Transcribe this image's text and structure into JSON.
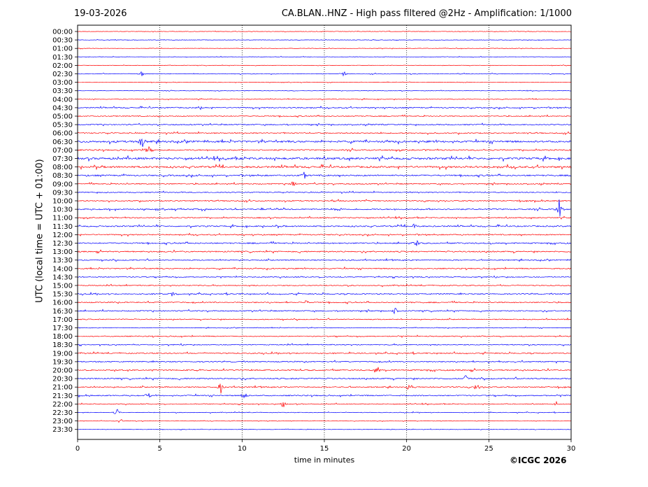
{
  "header": {
    "date": "19-03-2026",
    "title": "CA.BLAN..HNZ - High pass filtered @2Hz - Amplification: 1/1000"
  },
  "copyright": "©ICGC 2026",
  "chart_data": {
    "type": "line",
    "title": "CA.BLAN..HNZ - High pass filtered @2Hz - Amplification: 1/1000",
    "xlabel": "time in minutes",
    "ylabel": "UTC (local time = UTC + 01:00)",
    "xlim": [
      0,
      30
    ],
    "x_ticks": [
      0,
      5,
      10,
      15,
      20,
      25,
      30
    ],
    "y_ticks": [
      "00:00",
      "00:30",
      "01:00",
      "01:30",
      "02:00",
      "02:30",
      "03:00",
      "03:30",
      "04:00",
      "04:30",
      "05:00",
      "05:30",
      "06:00",
      "06:30",
      "07:00",
      "07:30",
      "08:00",
      "08:30",
      "09:00",
      "09:30",
      "10:00",
      "10:30",
      "11:00",
      "11:30",
      "12:00",
      "12:30",
      "13:00",
      "13:30",
      "14:00",
      "14:30",
      "15:00",
      "15:30",
      "16:00",
      "16:30",
      "17:00",
      "17:30",
      "18:00",
      "18:30",
      "19:00",
      "19:30",
      "20:00",
      "20:30",
      "21:00",
      "21:30",
      "22:00",
      "22:30",
      "23:00",
      "23:30"
    ],
    "grid": "vertical dotted at 5-minute intervals",
    "trace_colors": [
      "#ff0000",
      "#0000ff"
    ],
    "noise_level": [
      0.3,
      0.3,
      0.3,
      0.3,
      0.3,
      0.4,
      0.3,
      0.3,
      0.4,
      0.7,
      0.6,
      0.7,
      0.7,
      1.2,
      0.8,
      1.3,
      1.2,
      0.9,
      0.7,
      0.6,
      0.7,
      0.8,
      0.7,
      0.8,
      0.7,
      0.8,
      0.8,
      0.7,
      0.7,
      0.6,
      0.6,
      0.7,
      0.7,
      0.7,
      0.6,
      0.4,
      0.6,
      0.6,
      0.7,
      0.7,
      0.8,
      0.8,
      0.7,
      0.7,
      0.5,
      0.4,
      0.3,
      0.3
    ],
    "events": [
      {
        "line": "02:30",
        "minute": 3.9,
        "amplitude": 4
      },
      {
        "line": "02:30",
        "minute": 16.2,
        "amplitude": 4
      },
      {
        "line": "04:30",
        "minute": 7.5,
        "amplitude": 4
      },
      {
        "line": "06:30",
        "minute": 3.9,
        "amplitude": 14
      },
      {
        "line": "07:00",
        "minute": 4.3,
        "amplitude": 7
      },
      {
        "line": "08:30",
        "minute": 13.8,
        "amplitude": 7
      },
      {
        "line": "09:00",
        "minute": 13.1,
        "amplitude": 5
      },
      {
        "line": "10:30",
        "minute": 29.3,
        "amplitude": 16
      },
      {
        "line": "11:30",
        "minute": 20.5,
        "amplitude": 5
      },
      {
        "line": "12:30",
        "minute": 20.6,
        "amplitude": 7
      },
      {
        "line": "15:30",
        "minute": 5.8,
        "amplitude": 5
      },
      {
        "line": "16:00",
        "minute": 13.9,
        "amplitude": 5
      },
      {
        "line": "16:30",
        "minute": 19.3,
        "amplitude": 6
      },
      {
        "line": "20:00",
        "minute": 18.2,
        "amplitude": 5
      },
      {
        "line": "20:30",
        "minute": 23.6,
        "amplitude": 6
      },
      {
        "line": "21:00",
        "minute": 8.7,
        "amplitude": 10
      },
      {
        "line": "21:00",
        "minute": 20.1,
        "amplitude": 5
      },
      {
        "line": "21:00",
        "minute": 24.2,
        "amplitude": 8
      },
      {
        "line": "21:30",
        "minute": 10.1,
        "amplitude": 12
      },
      {
        "line": "21:30",
        "minute": 4.3,
        "amplitude": 6
      },
      {
        "line": "22:00",
        "minute": 12.5,
        "amplitude": 7
      },
      {
        "line": "22:00",
        "minute": 29.1,
        "amplitude": 4
      },
      {
        "line": "22:30",
        "minute": 2.4,
        "amplitude": 7
      },
      {
        "line": "23:00",
        "minute": 2.6,
        "amplitude": 4
      }
    ]
  }
}
